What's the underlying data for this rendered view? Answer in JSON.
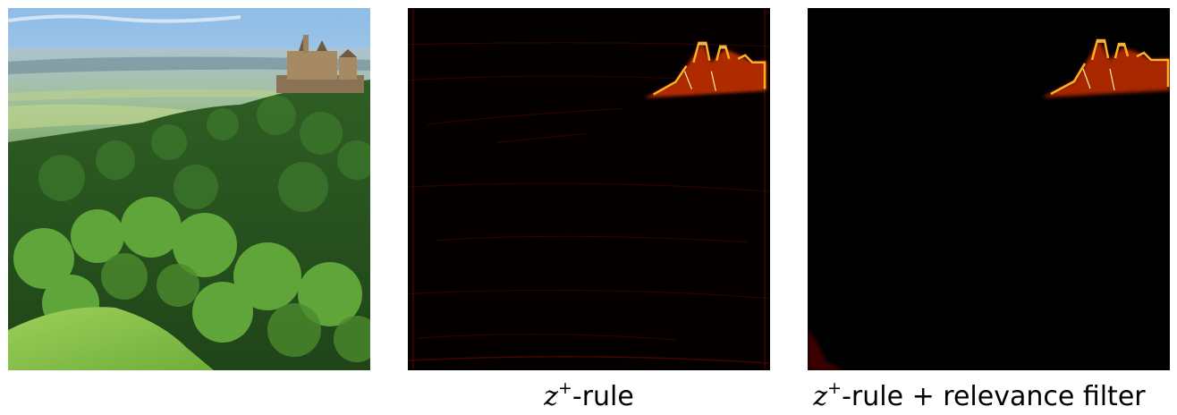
{
  "panels": [
    {
      "caption_math": "",
      "caption_text": ""
    },
    {
      "caption_math": "z",
      "caption_sup": "+",
      "caption_text": "-rule"
    },
    {
      "caption_math": "z",
      "caption_sup": "+",
      "caption_text": "-rule + relevance filter"
    }
  ]
}
